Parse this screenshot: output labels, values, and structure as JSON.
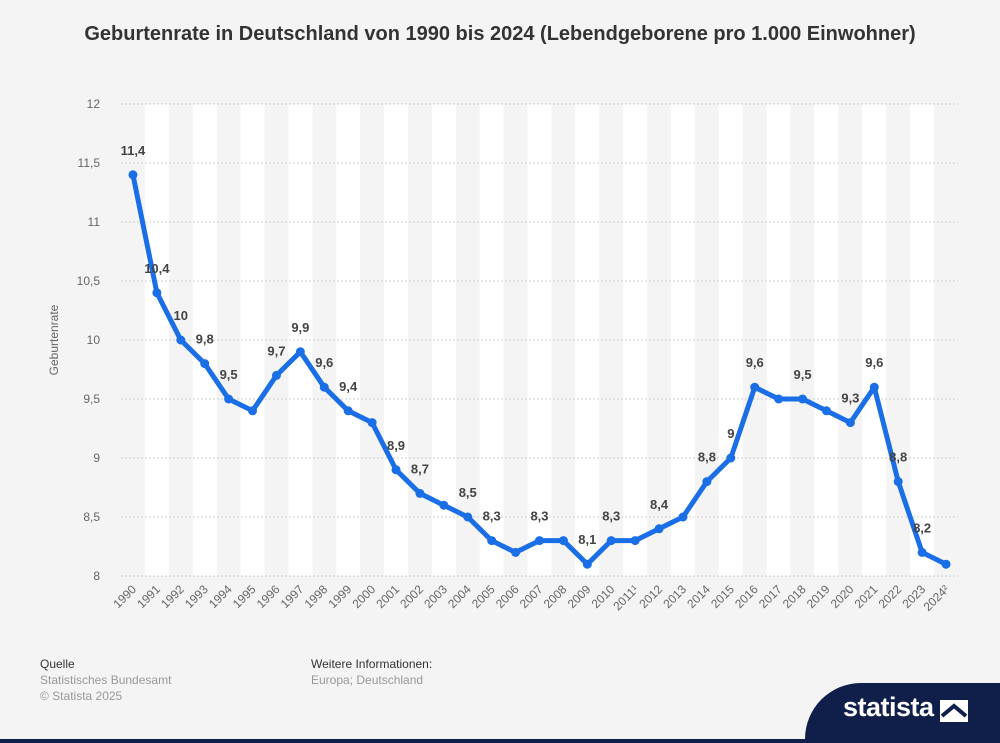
{
  "title": "Geburtenrate in Deutschland von 1990 bis 2024 (Lebendgeborene pro 1.000 Einwohner)",
  "chart_data": {
    "type": "line",
    "title": "Geburtenrate in Deutschland von 1990 bis 2024 (Lebendgeborene pro 1.000 Einwohner)",
    "ylabel": "Geburtenrate",
    "xlabel": "",
    "ylim": [
      8,
      12
    ],
    "yticks": [
      "12",
      "11,5",
      "11",
      "10,5",
      "10",
      "9,5",
      "9",
      "8,5",
      "8"
    ],
    "categories": [
      "1990",
      "1991",
      "1992",
      "1993",
      "1994",
      "1995",
      "1996",
      "1997",
      "1998",
      "1999",
      "2000",
      "2001",
      "2002",
      "2003",
      "2004",
      "2005",
      "2006",
      "2007",
      "2008",
      "2009",
      "2010",
      "2011¹",
      "2012",
      "2013",
      "2014",
      "2015",
      "2016",
      "2017",
      "2018",
      "2019",
      "2020",
      "2021",
      "2022",
      "2023",
      "2024²"
    ],
    "values": [
      11.4,
      10.4,
      10,
      9.8,
      9.5,
      9.4,
      9.7,
      9.9,
      9.6,
      9.4,
      9.3,
      8.9,
      8.7,
      8.6,
      8.5,
      8.3,
      8.2,
      8.3,
      8.3,
      8.1,
      8.3,
      8.3,
      8.4,
      8.5,
      8.8,
      9,
      9.6,
      9.5,
      9.5,
      9.4,
      9.3,
      9.6,
      8.8,
      8.2,
      8.1
    ],
    "data_labels": [
      "11,4",
      "10,4",
      "10",
      "9,8",
      "9,5",
      "",
      "9,7",
      "9,9",
      "9,6",
      "9,4",
      "",
      "8,9",
      "8,7",
      "",
      "8,5",
      "8,3",
      "",
      "8,3",
      "",
      "8,1",
      "8,3",
      "",
      "8,4",
      "",
      "8,8",
      "9",
      "9,6",
      "",
      "9,5",
      "",
      "9,3",
      "9,6",
      "8,8",
      "8,2",
      ""
    ],
    "grid": true,
    "color": "#1a6ee6"
  },
  "footer": {
    "source_heading": "Quelle",
    "source_name": "Statistisches Bundesamt",
    "copyright": "© Statista 2025",
    "info_heading": "Weitere Informationen:",
    "info_text": "Europa; Deutschland"
  },
  "brand": {
    "name": "statista"
  }
}
